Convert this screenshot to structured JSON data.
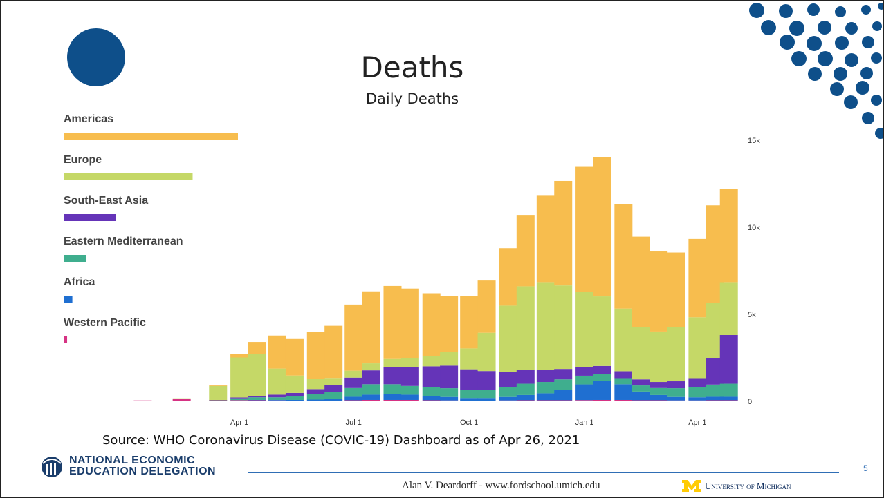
{
  "slide": {
    "title": "Deaths",
    "source": "Source:  WHO Coronavirus Disease (COVIC-19) Dashboard as of Apr 26, 2021",
    "logo_text_line1": "NATIONAL ECONOMIC",
    "logo_text_line2": "EDUCATION DELEGATION",
    "credit": "Alan V. Deardorff - www.fordschool.umich.edu",
    "umich_text": "University of Michigan",
    "page_number": "5",
    "colors": {
      "dots": "#0e4f8a",
      "rule": "#2f6eb5",
      "umich_gold": "#ffcb05"
    }
  },
  "chart_data": {
    "type": "bar",
    "stacked": true,
    "title": "Daily Deaths",
    "x_tick_labels": [
      "Apr 1",
      "Jul 1",
      "Oct 1",
      "Jan 1",
      "Apr 1"
    ],
    "y_tick_labels": [
      "0",
      "5k",
      "10k",
      "15k"
    ],
    "y_axis_side": "right",
    "ylim": [
      0,
      17000
    ],
    "legend_position": "left",
    "legend_bar_fractions": [
      1.0,
      0.74,
      0.3,
      0.13,
      0.05,
      0.02
    ],
    "grid": false,
    "x": [
      "2020-01-15",
      "2020-02-15",
      "2020-03-15",
      "2020-04-01",
      "2020-04-15",
      "2020-05-01",
      "2020-05-15",
      "2020-06-01",
      "2020-06-15",
      "2020-07-01",
      "2020-07-15",
      "2020-08-01",
      "2020-08-15",
      "2020-09-01",
      "2020-09-15",
      "2020-10-01",
      "2020-10-15",
      "2020-11-01",
      "2020-11-15",
      "2020-12-01",
      "2020-12-15",
      "2021-01-01",
      "2021-01-15",
      "2021-02-01",
      "2021-02-15",
      "2021-03-01",
      "2021-03-15",
      "2021-04-01",
      "2021-04-15",
      "2021-04-26"
    ],
    "series": [
      {
        "name": "Western Pacific",
        "color": "#d63384",
        "values": [
          50,
          120,
          60,
          60,
          60,
          50,
          40,
          40,
          40,
          60,
          80,
          80,
          80,
          60,
          50,
          40,
          40,
          50,
          60,
          60,
          60,
          70,
          80,
          80,
          60,
          60,
          50,
          50,
          60,
          60
        ]
      },
      {
        "name": "Africa",
        "color": "#1f6fd1",
        "values": [
          0,
          0,
          0,
          10,
          20,
          30,
          40,
          60,
          100,
          200,
          300,
          350,
          300,
          250,
          200,
          150,
          150,
          200,
          300,
          400,
          600,
          900,
          1100,
          900,
          500,
          300,
          200,
          180,
          200,
          200
        ]
      },
      {
        "name": "Eastern Mediterranean",
        "color": "#3fae8e",
        "values": [
          0,
          0,
          20,
          100,
          150,
          150,
          200,
          300,
          400,
          500,
          600,
          550,
          500,
          500,
          500,
          450,
          450,
          550,
          650,
          650,
          600,
          500,
          400,
          350,
          350,
          400,
          500,
          600,
          700,
          750
        ]
      },
      {
        "name": "South-East Asia",
        "color": "#6534b8",
        "values": [
          0,
          0,
          0,
          50,
          80,
          150,
          200,
          300,
          400,
          600,
          800,
          1000,
          1100,
          1200,
          1300,
          1200,
          1100,
          900,
          800,
          700,
          600,
          500,
          450,
          400,
          350,
          350,
          400,
          500,
          1500,
          2800
        ]
      },
      {
        "name": "Europe",
        "color": "#c5d867",
        "values": [
          0,
          50,
          800,
          2300,
          2400,
          1500,
          1000,
          600,
          400,
          400,
          400,
          450,
          500,
          600,
          800,
          1200,
          2200,
          3800,
          4800,
          5000,
          4800,
          4300,
          4000,
          3600,
          3000,
          2900,
          3100,
          3500,
          3200,
          3000
        ]
      },
      {
        "name": "Americas",
        "color": "#f7bd4e",
        "values": [
          0,
          0,
          50,
          200,
          700,
          1900,
          2100,
          2700,
          3000,
          3800,
          4100,
          4200,
          4000,
          3600,
          3200,
          3000,
          3000,
          3300,
          4100,
          5000,
          6000,
          7200,
          8000,
          6000,
          5200,
          4600,
          4300,
          4500,
          5600,
          5400
        ]
      }
    ]
  }
}
